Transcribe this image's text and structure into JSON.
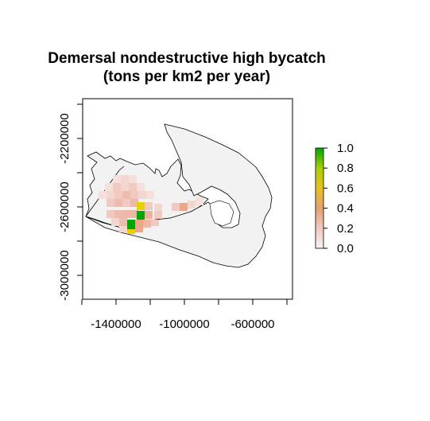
{
  "title": {
    "line1": "Demersal nondestructive high bycatch",
    "line2": "(tons per km2 per year)"
  },
  "map": {
    "x_axis": {
      "ticks": [
        -1600000,
        -1400000,
        -1200000,
        -1000000,
        -800000,
        -600000,
        -400000
      ],
      "labels": [
        {
          "value": -1400000,
          "text": "-1400000"
        },
        {
          "value": -1000000,
          "text": "-1000000"
        },
        {
          "value": -600000,
          "text": "-600000"
        }
      ]
    },
    "y_axis": {
      "ticks": [
        -2000000,
        -2200000,
        -2400000,
        -2600000,
        -2800000,
        -3000000
      ],
      "labels": [
        {
          "value": -2200000,
          "text": "-2200000"
        },
        {
          "value": -2600000,
          "text": "-2600000"
        },
        {
          "value": -3000000,
          "text": "-3000000"
        }
      ]
    },
    "region_fill": "#f2f2f2",
    "outline_color": "#000000"
  },
  "legend": {
    "ticks": [
      {
        "value": 1.0,
        "text": "1.0"
      },
      {
        "value": 0.8,
        "text": "0.8"
      },
      {
        "value": 0.6,
        "text": "0.6"
      },
      {
        "value": 0.4,
        "text": "0.4"
      },
      {
        "value": 0.2,
        "text": "0.2"
      },
      {
        "value": 0.0,
        "text": "0.0"
      }
    ],
    "gradient": [
      "#f2f2f2",
      "#f0c9c0",
      "#e8a070",
      "#e8c020",
      "#a8d000",
      "#00a600"
    ]
  }
}
